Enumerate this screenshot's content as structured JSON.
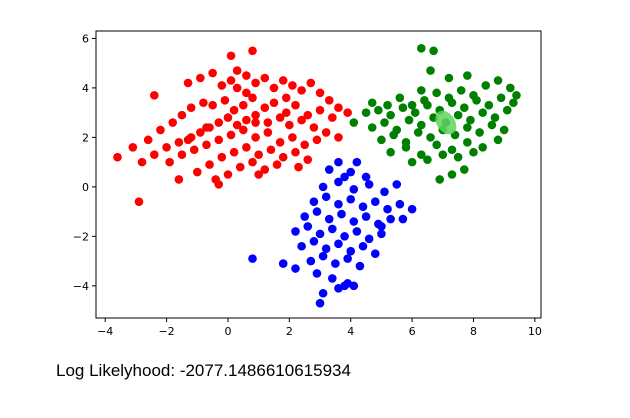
{
  "chart_data": {
    "type": "scatter",
    "title": "",
    "xlabel": "",
    "ylabel": "",
    "xlim": [
      -4.3,
      10.2
    ],
    "ylim": [
      -5.3,
      6.3
    ],
    "xticks": [
      -4,
      -2,
      0,
      2,
      4,
      6,
      8,
      10
    ],
    "yticks": [
      6,
      4,
      2,
      0,
      -2,
      -4
    ],
    "xtick_labels": [
      "−4",
      "−2",
      "0",
      "2",
      "4",
      "6",
      "8",
      "10"
    ],
    "ytick_labels": [
      "6",
      "4",
      "2",
      "0",
      "−2",
      "−4"
    ],
    "grid": false,
    "series": [
      {
        "color": "#ff0000",
        "x": [
          0.8,
          0.1,
          -1.3,
          -0.9,
          -0.5,
          -0.2,
          0.1,
          0.3,
          0.6,
          0.9,
          1.2,
          1.5,
          1.8,
          2.1,
          2.4,
          2.7,
          3.0,
          3.3,
          3.6,
          3.9,
          -3.6,
          -3.1,
          -2.6,
          -2.2,
          -1.8,
          -1.5,
          -1.2,
          -0.8,
          -0.5,
          -0.1,
          0.2,
          0.5,
          0.8,
          1.2,
          1.5,
          1.9,
          2.2,
          2.6,
          3.0,
          3.4,
          -2.8,
          -2.4,
          -2.0,
          -1.6,
          -1.2,
          -0.9,
          -0.6,
          -0.3,
          0.0,
          0.3,
          0.6,
          0.9,
          1.3,
          1.7,
          2.0,
          2.4,
          2.8,
          3.2,
          3.6,
          -1.9,
          -1.5,
          -1.1,
          -0.7,
          -0.3,
          0.1,
          0.5,
          0.9,
          1.3,
          1.7,
          2.1,
          2.5,
          2.9,
          -1.0,
          -0.6,
          -0.2,
          0.2,
          0.6,
          1.0,
          1.4,
          1.8,
          2.2,
          2.6,
          -0.4,
          0.0,
          0.4,
          0.8,
          1.2,
          1.6,
          -2.9,
          -1.6,
          -0.3,
          1.0,
          2.3,
          -1.3,
          0.6,
          -2.4,
          0.3,
          1.9,
          -0.7,
          0.9
        ],
        "y": [
          5.5,
          5.3,
          4.2,
          4.4,
          4.6,
          4.1,
          4.3,
          4.0,
          4.5,
          4.2,
          4.4,
          4.0,
          4.3,
          4.1,
          3.9,
          4.2,
          3.8,
          3.5,
          3.2,
          3.0,
          1.2,
          1.6,
          1.9,
          2.3,
          2.6,
          2.9,
          3.2,
          3.4,
          3.3,
          3.5,
          3.1,
          3.3,
          3.6,
          3.2,
          3.4,
          3.0,
          3.3,
          2.9,
          3.1,
          2.8,
          1.0,
          1.3,
          1.6,
          1.8,
          2.0,
          2.2,
          2.4,
          2.6,
          2.8,
          2.5,
          2.7,
          2.9,
          2.6,
          2.8,
          2.5,
          2.7,
          2.4,
          2.2,
          2.0,
          1.0,
          1.3,
          1.5,
          1.7,
          1.9,
          2.1,
          2.3,
          2.0,
          2.2,
          1.8,
          2.0,
          1.7,
          1.9,
          0.6,
          0.9,
          1.2,
          1.4,
          1.6,
          1.3,
          1.5,
          1.2,
          1.4,
          1.1,
          0.3,
          0.5,
          0.8,
          1.0,
          0.7,
          0.9,
          -0.6,
          0.3,
          0.1,
          0.5,
          0.8,
          1.9,
          3.8,
          3.7,
          4.7,
          3.6,
          2.4,
          2.6
        ]
      },
      {
        "color": "#008000",
        "x": [
          6.3,
          6.7,
          4.7,
          5.2,
          5.6,
          6.0,
          6.4,
          6.8,
          7.2,
          7.6,
          8.0,
          8.4,
          8.8,
          9.2,
          4.5,
          4.9,
          5.3,
          5.7,
          6.1,
          6.5,
          6.9,
          7.3,
          7.7,
          8.1,
          8.5,
          8.9,
          9.3,
          4.7,
          5.1,
          5.5,
          5.9,
          6.3,
          6.7,
          7.1,
          7.5,
          7.9,
          8.3,
          8.7,
          9.1,
          5.0,
          5.4,
          5.8,
          6.2,
          6.6,
          7.0,
          7.4,
          7.8,
          8.2,
          8.6,
          9.0,
          5.3,
          5.8,
          6.3,
          6.8,
          7.3,
          7.8,
          8.3,
          8.8,
          6.0,
          6.5,
          7.0,
          7.5,
          8.0,
          6.9,
          7.3,
          7.7,
          4.1,
          9.4,
          6.6,
          7.2,
          7.8,
          6.3
        ],
        "y": [
          5.6,
          5.5,
          3.4,
          3.3,
          3.6,
          3.3,
          3.5,
          3.8,
          3.6,
          3.9,
          3.7,
          4.1,
          4.3,
          4.0,
          3.0,
          3.1,
          2.9,
          3.2,
          3.0,
          3.3,
          3.1,
          3.4,
          3.2,
          3.5,
          3.3,
          3.6,
          3.4,
          2.4,
          2.6,
          2.3,
          2.7,
          2.5,
          2.8,
          2.6,
          2.9,
          2.7,
          3.0,
          2.8,
          3.1,
          1.9,
          2.1,
          1.8,
          2.2,
          2.0,
          2.3,
          2.1,
          2.4,
          2.2,
          2.5,
          2.3,
          1.4,
          1.6,
          1.3,
          1.7,
          1.5,
          1.8,
          1.6,
          1.9,
          1.0,
          1.1,
          1.3,
          1.2,
          1.4,
          0.3,
          0.5,
          0.7,
          2.6,
          3.7,
          4.7,
          4.4,
          4.5,
          3.9
        ]
      },
      {
        "color": "#0000ff",
        "x": [
          3.6,
          4.2,
          4.0,
          3.3,
          3.8,
          4.5,
          3.1,
          3.6,
          4.1,
          4.6,
          5.1,
          5.5,
          2.8,
          3.2,
          3.6,
          4.0,
          4.4,
          4.8,
          5.2,
          5.6,
          2.5,
          2.9,
          3.3,
          3.7,
          4.1,
          4.5,
          4.9,
          5.3,
          2.2,
          2.6,
          3.0,
          3.4,
          3.8,
          4.2,
          4.6,
          5.0,
          2.4,
          2.8,
          3.2,
          3.6,
          4.0,
          4.4,
          4.8,
          2.7,
          3.1,
          3.5,
          3.9,
          4.3,
          2.2,
          2.9,
          3.4,
          3.9,
          3.0,
          3.8,
          0.8,
          1.8,
          3.1,
          3.6,
          4.1,
          5.0,
          5.7,
          6.0
        ],
        "y": [
          1.0,
          1.0,
          0.6,
          0.7,
          0.4,
          0.4,
          0.0,
          0.2,
          -0.1,
          0.1,
          -0.2,
          0.1,
          -0.6,
          -0.4,
          -0.7,
          -0.5,
          -0.8,
          -0.6,
          -0.9,
          -0.7,
          -1.2,
          -1.0,
          -1.3,
          -1.1,
          -1.4,
          -1.2,
          -1.5,
          -1.3,
          -1.8,
          -1.6,
          -1.9,
          -1.7,
          -2.0,
          -1.8,
          -2.1,
          -1.9,
          -2.4,
          -2.2,
          -2.5,
          -2.3,
          -2.6,
          -2.4,
          -2.7,
          -3.0,
          -2.8,
          -3.1,
          -2.9,
          -3.2,
          -3.3,
          -3.5,
          -3.7,
          -3.9,
          -4.7,
          -4.0,
          -2.9,
          -3.1,
          -4.3,
          -4.1,
          -4.0,
          -1.6,
          -1.3,
          -0.9
        ]
      }
    ],
    "centroid_marker": {
      "x": 7.1,
      "y": 2.6,
      "color": "#5fd35f"
    }
  },
  "caption": {
    "text": "Log Likelyhood: -2077.1486610615934"
  }
}
